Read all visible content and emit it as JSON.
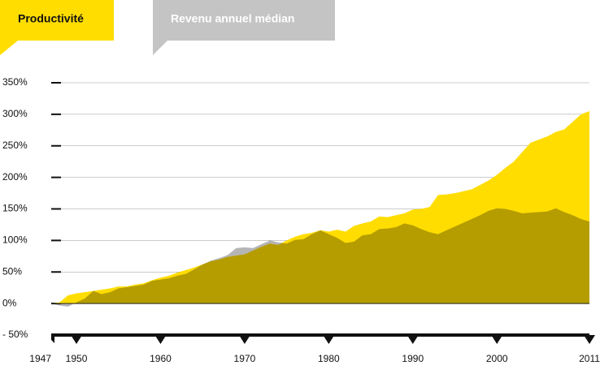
{
  "chart_data": {
    "type": "area",
    "x": [
      1947,
      1948,
      1949,
      1950,
      1951,
      1952,
      1953,
      1954,
      1955,
      1956,
      1957,
      1958,
      1959,
      1960,
      1961,
      1962,
      1963,
      1964,
      1965,
      1966,
      1967,
      1968,
      1969,
      1970,
      1971,
      1972,
      1973,
      1974,
      1975,
      1976,
      1977,
      1978,
      1979,
      1980,
      1981,
      1982,
      1983,
      1984,
      1985,
      1986,
      1987,
      1988,
      1989,
      1990,
      1991,
      1992,
      1993,
      1994,
      1995,
      1996,
      1997,
      1998,
      1999,
      2000,
      2001,
      2002,
      2003,
      2004,
      2005,
      2006,
      2007,
      2008,
      2009,
      2010,
      2011
    ],
    "series": [
      {
        "name": "Productivité",
        "color": "#ffdd00",
        "values": [
          0,
          2,
          13,
          16,
          18,
          20,
          22,
          24,
          27,
          27,
          30,
          32,
          37,
          41,
          44,
          49,
          53,
          57,
          62,
          67,
          70,
          74,
          76,
          78,
          84,
          90,
          95,
          93,
          100,
          106,
          110,
          112,
          116,
          114,
          117,
          114,
          123,
          127,
          130,
          138,
          137,
          140,
          143,
          149,
          150,
          153,
          172,
          173,
          175,
          178,
          181,
          188,
          195,
          204,
          215,
          225,
          240,
          255,
          260,
          265,
          272,
          276,
          288,
          300,
          305
        ]
      },
      {
        "name": "Revenu annuel médian",
        "color": "#b5b5b5",
        "values": [
          0,
          -3,
          -5,
          2,
          8,
          20,
          15,
          18,
          24,
          26,
          28,
          30,
          36,
          38,
          40,
          44,
          47,
          54,
          62,
          68,
          72,
          77,
          88,
          89,
          88,
          94,
          100,
          97,
          95,
          101,
          102,
          110,
          116,
          110,
          104,
          96,
          98,
          108,
          110,
          118,
          119,
          121,
          127,
          124,
          118,
          113,
          110,
          116,
          122,
          128,
          134,
          140,
          147,
          151,
          150,
          147,
          143,
          144,
          145,
          146,
          151,
          145,
          140,
          134,
          130
        ]
      }
    ],
    "xlim": [
      1947,
      2011
    ],
    "xticks": [
      1947,
      1950,
      1960,
      1970,
      1980,
      1990,
      2000,
      2011
    ],
    "ylim": [
      -50,
      350
    ],
    "yticks": [
      {
        "value": -50,
        "label": "- 50%"
      },
      {
        "value": 0,
        "label": "0%"
      },
      {
        "value": 50,
        "label": "50%"
      },
      {
        "value": 100,
        "label": "100%"
      },
      {
        "value": 150,
        "label": "150%"
      },
      {
        "value": 200,
        "label": "200%"
      },
      {
        "value": 250,
        "label": "250%"
      },
      {
        "value": 300,
        "label": "300%"
      },
      {
        "value": 350,
        "label": "350%"
      }
    ],
    "grid": true
  }
}
